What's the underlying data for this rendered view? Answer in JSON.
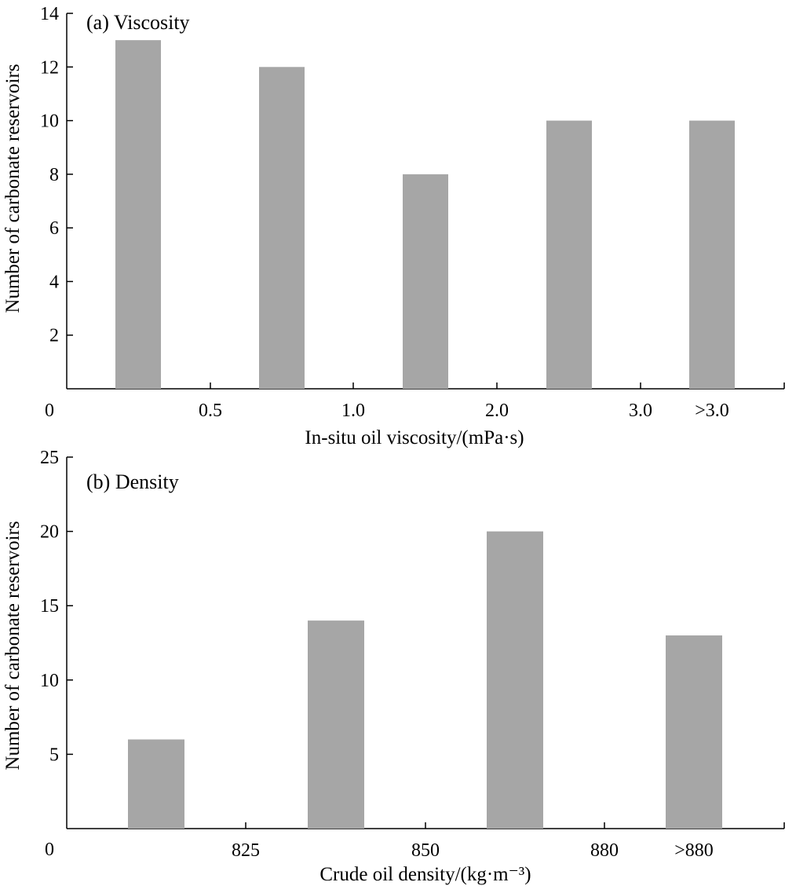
{
  "colors": {
    "bar": "#a6a6a6",
    "axis": "#000000",
    "background": "#ffffff"
  },
  "chart_data": [
    {
      "type": "bar",
      "title": "(a) Viscosity",
      "xlabel": "In-situ oil viscosity/(mPa·s)",
      "ylabel": "Number of carbonate reservoirs",
      "origin_label": "0",
      "categories": [
        "≤0.5",
        "0.5–1.0",
        "1.0–2.0",
        "2.0–3.0",
        ">3.0"
      ],
      "boundary_labels": [
        "0.5",
        "1.0",
        "2.0",
        "3.0",
        ">3.0"
      ],
      "values": [
        13,
        12,
        8,
        10,
        10
      ],
      "ylim": [
        0,
        14
      ],
      "yticks": [
        2,
        4,
        6,
        8,
        10,
        12,
        14
      ],
      "grid": false,
      "legend": false
    },
    {
      "type": "bar",
      "title": "(b) Density",
      "xlabel": "Crude oil density/(kg·m⁻³)",
      "ylabel": "Number of carbonate reservoirs",
      "origin_label": "0",
      "categories": [
        "≤825",
        "825–850",
        "850–880",
        ">880"
      ],
      "boundary_labels": [
        "825",
        "850",
        "880",
        ">880"
      ],
      "values": [
        6,
        14,
        20,
        13
      ],
      "ylim": [
        0,
        25
      ],
      "yticks": [
        5,
        10,
        15,
        20,
        25
      ],
      "grid": false,
      "legend": false
    }
  ]
}
